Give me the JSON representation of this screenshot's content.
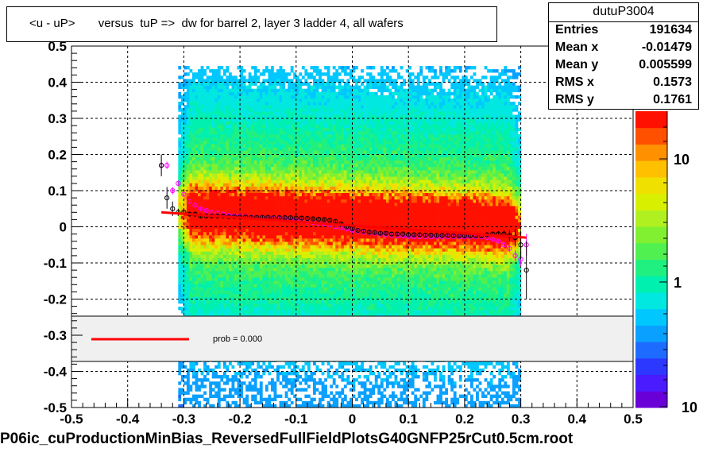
{
  "title": "<u - uP>       versus  tuP =>  dw for barrel 2, layer 3 ladder 4, all wafers",
  "stats": {
    "name": "dutuP3004",
    "rows": [
      {
        "key": "Entries",
        "value": "191634"
      },
      {
        "key": "Mean x",
        "value": "-0.01479"
      },
      {
        "key": "Mean y",
        "value": "0.005599"
      },
      {
        "key": "RMS x",
        "value": "0.1573"
      },
      {
        "key": "RMS y",
        "value": "0.1761"
      }
    ]
  },
  "legend": {
    "label": "prob = 0.000",
    "line_color": "#ff0000"
  },
  "footer": "P06ic_cuProductionMinBias_ReversedFullFieldPlotsG40GNFP25rCut0.5cm.root",
  "chart_data": {
    "type": "heatmap",
    "xlim": [
      -0.5,
      0.5
    ],
    "ylim": [
      -0.5,
      0.5
    ],
    "grid": true,
    "x_ticks": [
      "-0.5",
      "-0.4",
      "-0.3",
      "-0.2",
      "-0.1",
      "0",
      "0.1",
      "0.2",
      "0.3",
      "0.4",
      "0.5"
    ],
    "y_ticks": [
      "-0.5",
      "-0.4",
      "-0.3",
      "-0.2",
      "-0.1",
      "0",
      "0.1",
      "0.2",
      "0.3",
      "0.4",
      "0.5"
    ],
    "colorbar": {
      "scale": "log",
      "labels": [
        "10",
        "1",
        "10"
      ]
    },
    "occupied_x_range": [
      -0.31,
      0.3
    ],
    "fit_line": {
      "color": "#ff0000",
      "x": [
        -0.34,
        0.31
      ],
      "y": [
        0.04,
        -0.03
      ]
    },
    "profile_black": {
      "x": [
        -0.34,
        -0.33,
        -0.32,
        -0.31,
        -0.3,
        -0.29,
        -0.28,
        -0.27,
        -0.26,
        -0.25,
        -0.24,
        -0.23,
        -0.22,
        -0.21,
        -0.2,
        -0.19,
        -0.18,
        -0.17,
        -0.16,
        -0.15,
        -0.14,
        -0.13,
        -0.12,
        -0.11,
        -0.1,
        -0.09,
        -0.08,
        -0.07,
        -0.06,
        -0.05,
        -0.04,
        -0.03,
        -0.02,
        -0.01,
        0.0,
        0.01,
        0.02,
        0.03,
        0.04,
        0.05,
        0.06,
        0.07,
        0.08,
        0.09,
        0.1,
        0.11,
        0.12,
        0.13,
        0.14,
        0.15,
        0.16,
        0.17,
        0.18,
        0.19,
        0.2,
        0.21,
        0.22,
        0.23,
        0.24,
        0.25,
        0.26,
        0.27,
        0.28,
        0.29,
        0.3,
        0.31
      ],
      "y": [
        0.17,
        0.08,
        0.05,
        0.04,
        0.04,
        0.035,
        0.035,
        0.03,
        0.03,
        0.03,
        0.03,
        0.03,
        0.028,
        0.028,
        0.027,
        0.027,
        0.026,
        0.026,
        0.026,
        0.026,
        0.025,
        0.025,
        0.025,
        0.025,
        0.024,
        0.024,
        0.023,
        0.022,
        0.021,
        0.02,
        0.018,
        0.015,
        0.008,
        0.0,
        -0.005,
        -0.01,
        -0.012,
        -0.015,
        -0.016,
        -0.018,
        -0.018,
        -0.02,
        -0.02,
        -0.02,
        -0.022,
        -0.022,
        -0.022,
        -0.023,
        -0.023,
        -0.024,
        -0.024,
        -0.024,
        -0.025,
        -0.025,
        -0.025,
        -0.025,
        -0.025,
        -0.025,
        -0.022,
        -0.02,
        -0.02,
        -0.02,
        -0.025,
        -0.03,
        -0.05,
        -0.12
      ],
      "err": [
        0.03,
        0.03,
        0.02,
        0.01,
        0.008,
        0.006,
        0.005,
        0.005,
        0.004,
        0.004,
        0.004,
        0.004,
        0.004,
        0.004,
        0.004,
        0.004,
        0.004,
        0.004,
        0.004,
        0.004,
        0.004,
        0.004,
        0.004,
        0.004,
        0.004,
        0.004,
        0.004,
        0.004,
        0.004,
        0.004,
        0.004,
        0.004,
        0.004,
        0.004,
        0.004,
        0.004,
        0.004,
        0.004,
        0.004,
        0.004,
        0.004,
        0.004,
        0.004,
        0.004,
        0.004,
        0.004,
        0.004,
        0.004,
        0.004,
        0.004,
        0.004,
        0.004,
        0.004,
        0.004,
        0.004,
        0.004,
        0.004,
        0.004,
        0.005,
        0.006,
        0.008,
        0.01,
        0.015,
        0.025,
        0.04,
        0.08
      ]
    },
    "profile_magenta": {
      "x": [
        -0.34,
        -0.33,
        -0.32,
        -0.31,
        -0.3,
        -0.29,
        -0.28,
        -0.27,
        -0.26,
        -0.25,
        -0.24,
        -0.23,
        -0.22,
        -0.21,
        -0.2,
        -0.19,
        -0.18,
        -0.17,
        -0.16,
        -0.15,
        -0.14,
        -0.13,
        -0.12,
        -0.11,
        -0.1,
        -0.09,
        -0.08,
        -0.07,
        -0.06,
        -0.05,
        -0.04,
        -0.03,
        -0.02,
        -0.01,
        0.0,
        0.01,
        0.02,
        0.03,
        0.04,
        0.05,
        0.06,
        0.07,
        0.08,
        0.09,
        0.1,
        0.11,
        0.12,
        0.13,
        0.14,
        0.15,
        0.16,
        0.17,
        0.18,
        0.19,
        0.2,
        0.21,
        0.22,
        0.23,
        0.24,
        0.25,
        0.26,
        0.27,
        0.28,
        0.29,
        0.3,
        0.31
      ],
      "y": [
        0.17,
        0.17,
        0.1,
        0.12,
        0.09,
        0.07,
        0.06,
        0.05,
        0.045,
        0.04,
        0.038,
        0.035,
        0.032,
        0.03,
        0.03,
        0.028,
        0.027,
        0.026,
        0.025,
        0.024,
        0.023,
        0.022,
        0.021,
        0.02,
        0.018,
        0.016,
        0.014,
        0.012,
        0.01,
        0.008,
        0.005,
        0.0,
        -0.003,
        -0.006,
        -0.01,
        -0.012,
        -0.015,
        -0.016,
        -0.018,
        -0.02,
        -0.022,
        -0.024,
        -0.025,
        -0.026,
        -0.027,
        -0.028,
        -0.028,
        -0.028,
        -0.028,
        -0.028,
        -0.028,
        -0.028,
        -0.028,
        -0.028,
        -0.028,
        -0.028,
        -0.028,
        -0.028,
        -0.03,
        -0.035,
        -0.04,
        -0.05,
        -0.06,
        -0.08,
        -0.09,
        -0.05
      ],
      "err": [
        0.01,
        0.01,
        0.01,
        0.008,
        0.006,
        0.005,
        0.004,
        0.004,
        0.004,
        0.004,
        0.004,
        0.004,
        0.004,
        0.004,
        0.004,
        0.004,
        0.004,
        0.004,
        0.004,
        0.004,
        0.004,
        0.004,
        0.004,
        0.004,
        0.004,
        0.004,
        0.004,
        0.004,
        0.004,
        0.004,
        0.004,
        0.004,
        0.004,
        0.004,
        0.004,
        0.004,
        0.004,
        0.004,
        0.004,
        0.004,
        0.004,
        0.004,
        0.004,
        0.004,
        0.004,
        0.004,
        0.004,
        0.004,
        0.004,
        0.004,
        0.004,
        0.004,
        0.004,
        0.004,
        0.004,
        0.004,
        0.004,
        0.004,
        0.004,
        0.005,
        0.006,
        0.008,
        0.01,
        0.015,
        0.02,
        0.03
      ]
    }
  }
}
